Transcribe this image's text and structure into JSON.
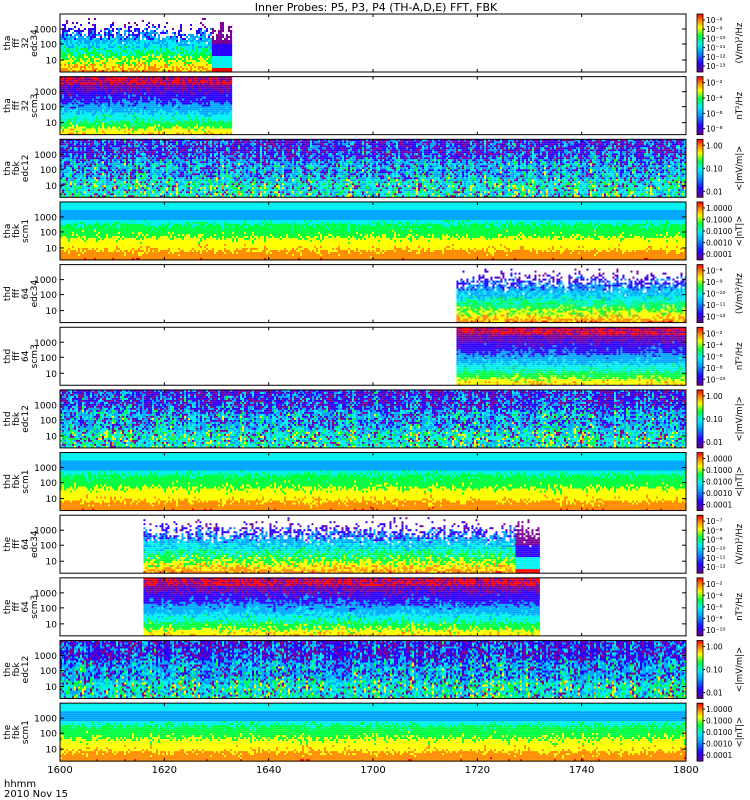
{
  "title": "Inner Probes: P5, P3, P4 (TH-A,D,E) FFT, FBK",
  "footer": {
    "hhmm_label": "hhmm",
    "date_label": "2010 Nov 15"
  },
  "chart_data": {
    "type": "heatmap",
    "x_axis": {
      "ticks": [
        "1600",
        "1620",
        "1640",
        "1700",
        "1720",
        "1740",
        "1800"
      ],
      "range_hhmm": [
        "1600",
        "1800"
      ]
    },
    "colorscale": [
      "#7a0096",
      "#2b00ff",
      "#00a6ff",
      "#00f0f0",
      "#00ff40",
      "#ffff00",
      "#ff8c00",
      "#ff0000"
    ],
    "panels": [
      {
        "label": [
          "tha",
          "fff",
          "32",
          "edc34"
        ],
        "yticks": [
          "1000",
          "100",
          "10"
        ],
        "cb_label": "(V/m)²/Hz",
        "cb_ticks": [
          "10⁻⁸",
          "10⁻⁹",
          "10⁻¹⁰",
          "10⁻¹¹",
          "10⁻¹²",
          "10⁻¹³"
        ],
        "data_start": "1600",
        "data_end": "1633",
        "kind": "fft",
        "tail_start": "1629"
      },
      {
        "label": [
          "tha",
          "fff",
          "32",
          "scm3"
        ],
        "yticks": [
          "1000",
          "100",
          "10"
        ],
        "cb_label": "nT²/Hz",
        "cb_ticks": [
          "10⁻²",
          "10⁻⁴",
          "10⁻⁶",
          "10⁻⁸"
        ],
        "data_start": "1600",
        "data_end": "1633",
        "kind": "scm_fft",
        "tail_start": ""
      },
      {
        "label": [
          "tha",
          "fbk",
          "edc12"
        ],
        "yticks": [
          "1000",
          "100",
          "10"
        ],
        "cb_label": "<|mV/m|>",
        "cb_ticks": [
          "1.00",
          "0.10",
          "0.01"
        ],
        "data_start": "1600",
        "data_end": "1800",
        "kind": "fbk_e",
        "tail_start": ""
      },
      {
        "label": [
          "tha",
          "fbk",
          "scm1"
        ],
        "yticks": [
          "1000",
          "100",
          "10"
        ],
        "cb_label": "<|nT|>",
        "cb_ticks": [
          "1.0000",
          "0.1000",
          "0.0100",
          "0.0010",
          "0.0001"
        ],
        "data_start": "1600",
        "data_end": "1800",
        "kind": "fbk_b",
        "tail_start": ""
      },
      {
        "label": [
          "thd",
          "fff",
          "64",
          "edc34"
        ],
        "yticks": [
          "1000",
          "100",
          "10"
        ],
        "cb_label": "(V/m)²/Hz",
        "cb_ticks": [
          "10⁻⁸",
          "10⁻⁹",
          "10⁻¹⁰",
          "10⁻¹¹",
          "10⁻¹²"
        ],
        "data_start": "1716",
        "data_end": "1800",
        "kind": "fft",
        "tail_start": ""
      },
      {
        "label": [
          "thd",
          "fff",
          "64",
          "scm3"
        ],
        "yticks": [
          "1000",
          "100",
          "10"
        ],
        "cb_label": "nT²/Hz",
        "cb_ticks": [
          "10⁻²",
          "10⁻⁴",
          "10⁻⁶",
          "10⁻⁸",
          "10⁻¹⁰"
        ],
        "data_start": "1716",
        "data_end": "1800",
        "kind": "scm_fft",
        "tail_start": ""
      },
      {
        "label": [
          "thd",
          "fbk",
          "edc12"
        ],
        "yticks": [
          "1000",
          "100",
          "10"
        ],
        "cb_label": "<|mV/m|>",
        "cb_ticks": [
          "1.00",
          "0.10",
          "0.01"
        ],
        "data_start": "1600",
        "data_end": "1800",
        "kind": "fbk_e",
        "tail_start": ""
      },
      {
        "label": [
          "thd",
          "fbk",
          "scm1"
        ],
        "yticks": [
          "1000",
          "100",
          "10"
        ],
        "cb_label": "<|nT|>",
        "cb_ticks": [
          "1.0000",
          "0.1000",
          "0.0100",
          "0.0010",
          "0.0001"
        ],
        "data_start": "1600",
        "data_end": "1800",
        "kind": "fbk_b",
        "tail_start": ""
      },
      {
        "label": [
          "the",
          "fff",
          "64",
          "edc34"
        ],
        "yticks": [
          "1000",
          "100",
          "10"
        ],
        "cb_label": "(V/m)²/Hz",
        "cb_ticks": [
          "10⁻⁷",
          "10⁻⁸",
          "10⁻⁹",
          "10⁻¹⁰",
          "10⁻¹¹",
          "10⁻¹²"
        ],
        "data_start": "1616",
        "data_end": "1732",
        "kind": "fft",
        "tail_start": "1727"
      },
      {
        "label": [
          "the",
          "fff",
          "64",
          "scm3"
        ],
        "yticks": [
          "1000",
          "100",
          "10"
        ],
        "cb_label": "nT²/Hz",
        "cb_ticks": [
          "10⁻²",
          "10⁻⁴",
          "10⁻⁶",
          "10⁻⁸",
          "10⁻¹⁰"
        ],
        "data_start": "1616",
        "data_end": "1732",
        "kind": "scm_fft",
        "tail_start": ""
      },
      {
        "label": [
          "the",
          "fbk",
          "edc12"
        ],
        "yticks": [
          "1000",
          "100",
          "10"
        ],
        "cb_label": "<|mV/m|>",
        "cb_ticks": [
          "1.00",
          "0.10",
          "0.01"
        ],
        "data_start": "1600",
        "data_end": "1800",
        "kind": "fbk_e",
        "tail_start": ""
      },
      {
        "label": [
          "the",
          "fbk",
          "scm1"
        ],
        "yticks": [
          "1000",
          "100",
          "10"
        ],
        "cb_label": "<|nT|>",
        "cb_ticks": [
          "1.0000",
          "0.1000",
          "0.0100",
          "0.0010",
          "0.0001"
        ],
        "data_start": "1600",
        "data_end": "1800",
        "kind": "fbk_b",
        "tail_start": ""
      }
    ]
  }
}
